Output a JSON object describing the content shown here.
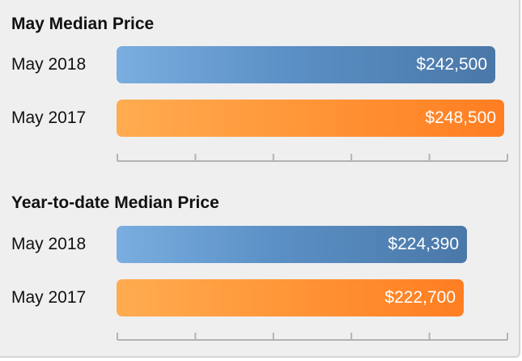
{
  "chart_data": [
    {
      "type": "bar",
      "orientation": "horizontal",
      "title": "May Median Price",
      "categories": [
        "May 2018",
        "May 2017"
      ],
      "values": [
        242500,
        248500
      ],
      "value_labels": [
        "$242,500",
        "$248,500"
      ],
      "bar_colors": [
        "#5b90c6",
        "#ff9537"
      ],
      "xlim": [
        0,
        250000
      ],
      "axis_ticks": 6,
      "grid": false
    },
    {
      "type": "bar",
      "orientation": "horizontal",
      "title": "Year-to-date Median Price",
      "categories": [
        "May 2018",
        "May 2017"
      ],
      "values": [
        224390,
        222700
      ],
      "value_labels": [
        "$224,390",
        "$222,700"
      ],
      "bar_colors": [
        "#5b90c6",
        "#ff9537"
      ],
      "xlim": [
        0,
        250000
      ],
      "axis_ticks": 6,
      "grid": false
    }
  ]
}
